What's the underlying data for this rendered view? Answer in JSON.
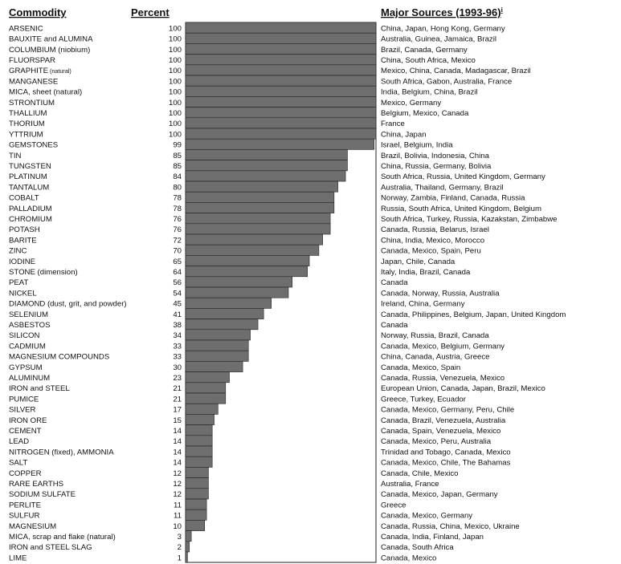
{
  "headers": {
    "commodity": "Commodity",
    "percent": "Percent",
    "sources": "Major Sources (1993-96)",
    "sources_mark": "i"
  },
  "chart_data": {
    "type": "bar",
    "orientation": "horizontal",
    "xlim": [
      0,
      100
    ],
    "bar_color": "#6e6e6e",
    "rows": [
      {
        "commodity": "ARSENIC",
        "percent": 100,
        "sources": "China, Japan, Hong Kong, Germany"
      },
      {
        "commodity": "BAUXITE and ALUMINA",
        "percent": 100,
        "sources": "Australia, Guinea, Jamaica, Brazil"
      },
      {
        "commodity": "COLUMBIUM",
        "qualifier": "(niobium)",
        "percent": 100,
        "sources": "Brazil, Canada, Germany"
      },
      {
        "commodity": "FLUORSPAR",
        "percent": 100,
        "sources": "China, South Africa, Mexico"
      },
      {
        "commodity": "GRAPHITE",
        "qualifier": "(natural)",
        "qualifier_small": true,
        "percent": 100,
        "sources": "Mexico, China, Canada, Madagascar, Brazil"
      },
      {
        "commodity": "MANGANESE",
        "percent": 100,
        "sources": "South Africa, Gabon, Australia, France"
      },
      {
        "commodity": "MICA, sheet (natural)",
        "percent": 100,
        "sources": "India, Belgium, China, Brazil"
      },
      {
        "commodity": "STRONTIUM",
        "percent": 100,
        "sources": "Mexico, Germany"
      },
      {
        "commodity": "THALLIUM",
        "percent": 100,
        "sources": "Belgium, Mexico, Canada"
      },
      {
        "commodity": "THORIUM",
        "percent": 100,
        "sources": "France"
      },
      {
        "commodity": "YTTRIUM",
        "percent": 100,
        "sources": "China, Japan"
      },
      {
        "commodity": "GEMSTONES",
        "percent": 99,
        "sources": "Israel, Belgium, India"
      },
      {
        "commodity": "TIN",
        "percent": 85,
        "sources": "Brazil, Bolivia, Indonesia, China"
      },
      {
        "commodity": "TUNGSTEN",
        "percent": 85,
        "sources": "China, Russia, Germany, Bolivia"
      },
      {
        "commodity": "PLATINUM",
        "percent": 84,
        "sources": "South Africa, Russia, United Kingdom, Germany"
      },
      {
        "commodity": "TANTALUM",
        "percent": 80,
        "sources": "Australia, Thailand, Germany, Brazil"
      },
      {
        "commodity": "COBALT",
        "percent": 78,
        "sources": "Norway, Zambia, Finland, Canada, Russia"
      },
      {
        "commodity": "PALLADIUM",
        "percent": 78,
        "sources": "Russia, South Africa, United Kingdom, Belgium"
      },
      {
        "commodity": "CHROMIUM",
        "percent": 76,
        "sources": "South Africa, Turkey, Russia, Kazakstan, Zimbabwe"
      },
      {
        "commodity": "POTASH",
        "percent": 76,
        "sources": "Canada, Russia, Belarus, Israel"
      },
      {
        "commodity": "BARITE",
        "percent": 72,
        "sources": "China, India, Mexico, Morocco"
      },
      {
        "commodity": "ZINC",
        "percent": 70,
        "sources": "Canada, Mexico, Spain, Peru"
      },
      {
        "commodity": "IODINE",
        "percent": 65,
        "sources": "Japan, Chile, Canada"
      },
      {
        "commodity": "STONE (dimension)",
        "percent": 64,
        "sources": "Italy, India, Brazil, Canada"
      },
      {
        "commodity": "PEAT",
        "percent": 56,
        "sources": "Canada"
      },
      {
        "commodity": "NICKEL",
        "percent": 54,
        "sources": "Canada, Norway, Russia, Australia"
      },
      {
        "commodity": "DIAMOND (dust, grit, and powder)",
        "percent": 45,
        "sources": "Ireland, China, Germany"
      },
      {
        "commodity": "SELENIUM",
        "percent": 41,
        "sources": "Canada, Philippines, Belgium, Japan, United Kingdom"
      },
      {
        "commodity": "ASBESTOS",
        "percent": 38,
        "sources": "Canada"
      },
      {
        "commodity": "SILICON",
        "percent": 34,
        "sources": "Norway, Russia, Brazil, Canada"
      },
      {
        "commodity": "CADMIUM",
        "percent": 33,
        "sources": "Canada, Mexico, Belgium, Germany"
      },
      {
        "commodity": "MAGNESIUM COMPOUNDS",
        "percent": 33,
        "sources": "China, Canada, Austria, Greece"
      },
      {
        "commodity": "GYPSUM",
        "percent": 30,
        "sources": "Canada, Mexico, Spain"
      },
      {
        "commodity": "ALUMINUM",
        "percent": 23,
        "sources": "Canada, Russia, Venezuela, Mexico"
      },
      {
        "commodity": "IRON and STEEL",
        "percent": 21,
        "sources": "European Union, Canada, Japan, Brazil, Mexico"
      },
      {
        "commodity": "PUMICE",
        "percent": 21,
        "sources": "Greece, Turkey, Ecuador"
      },
      {
        "commodity": "SILVER",
        "percent": 17,
        "sources": "Canada, Mexico, Germany, Peru, Chile"
      },
      {
        "commodity": "IRON ORE",
        "percent": 15,
        "sources": "Canada, Brazil, Venezuela, Australia"
      },
      {
        "commodity": "CEMENT",
        "percent": 14,
        "sources": "Canada, Spain, Venezuela, Mexico"
      },
      {
        "commodity": "LEAD",
        "percent": 14,
        "sources": "Canada, Mexico, Peru, Australia"
      },
      {
        "commodity": "NITROGEN (fixed), AMMONIA",
        "percent": 14,
        "sources": "Trinidad and Tobago, Canada, Mexico"
      },
      {
        "commodity": "SALT",
        "percent": 14,
        "sources": "Canada, Mexico, Chile, The Bahamas"
      },
      {
        "commodity": "COPPER",
        "percent": 12,
        "sources": "Canada, Chile, Mexico"
      },
      {
        "commodity": "RARE EARTHS",
        "percent": 12,
        "sources": "Australia, France"
      },
      {
        "commodity": "SODIUM SULFATE",
        "percent": 12,
        "sources": "Canada, Mexico, Japan, Germany"
      },
      {
        "commodity": "PERLITE",
        "percent": 11,
        "sources": "Greece"
      },
      {
        "commodity": "SULFUR",
        "percent": 11,
        "sources": "Canada, Mexico, Germany"
      },
      {
        "commodity": "MAGNESIUM",
        "percent": 10,
        "sources": "Canada, Russia, China, Mexico, Ukraine"
      },
      {
        "commodity": "MICA, scrap and flake (natural)",
        "percent": 3,
        "sources": "Canada, India, Finland, Japan"
      },
      {
        "commodity": "IRON and STEEL SLAG",
        "percent": 2,
        "sources": "Canada, South Africa"
      },
      {
        "commodity": "LIME",
        "percent": 1,
        "sources": "Canada, Mexico"
      }
    ]
  }
}
